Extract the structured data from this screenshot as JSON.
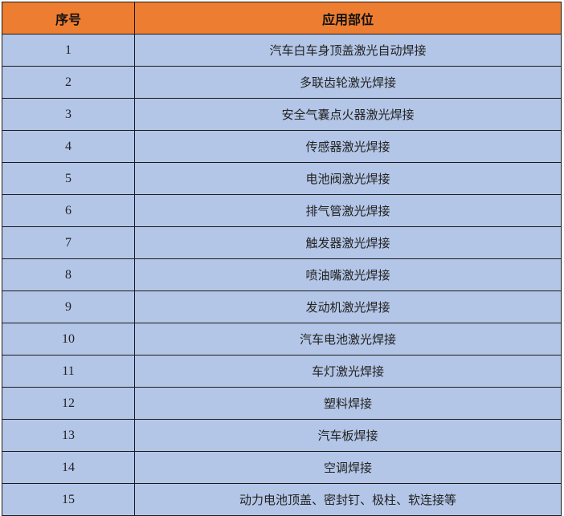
{
  "header": {
    "col1": "序号",
    "col2": "应用部位"
  },
  "colors": {
    "header_bg": "#ED7D31",
    "row_bg": "#B4C6E7"
  },
  "rows": [
    {
      "no": "1",
      "part": "汽车白车身顶盖激光自动焊接"
    },
    {
      "no": "2",
      "part": "多联齿轮激光焊接"
    },
    {
      "no": "3",
      "part": "安全气囊点火器激光焊接"
    },
    {
      "no": "4",
      "part": "传感器激光焊接"
    },
    {
      "no": "5",
      "part": "电池阀激光焊接"
    },
    {
      "no": "6",
      "part": "排气管激光焊接"
    },
    {
      "no": "7",
      "part": "触发器激光焊接"
    },
    {
      "no": "8",
      "part": "喷油嘴激光焊接"
    },
    {
      "no": "9",
      "part": "发动机激光焊接"
    },
    {
      "no": "10",
      "part": "汽车电池激光焊接"
    },
    {
      "no": "11",
      "part": "车灯激光焊接"
    },
    {
      "no": "12",
      "part": "塑料焊接"
    },
    {
      "no": "13",
      "part": "汽车板焊接"
    },
    {
      "no": "14",
      "part": "空调焊接"
    },
    {
      "no": "15",
      "part": "动力电池顶盖、密封钉、极柱、软连接等"
    }
  ]
}
